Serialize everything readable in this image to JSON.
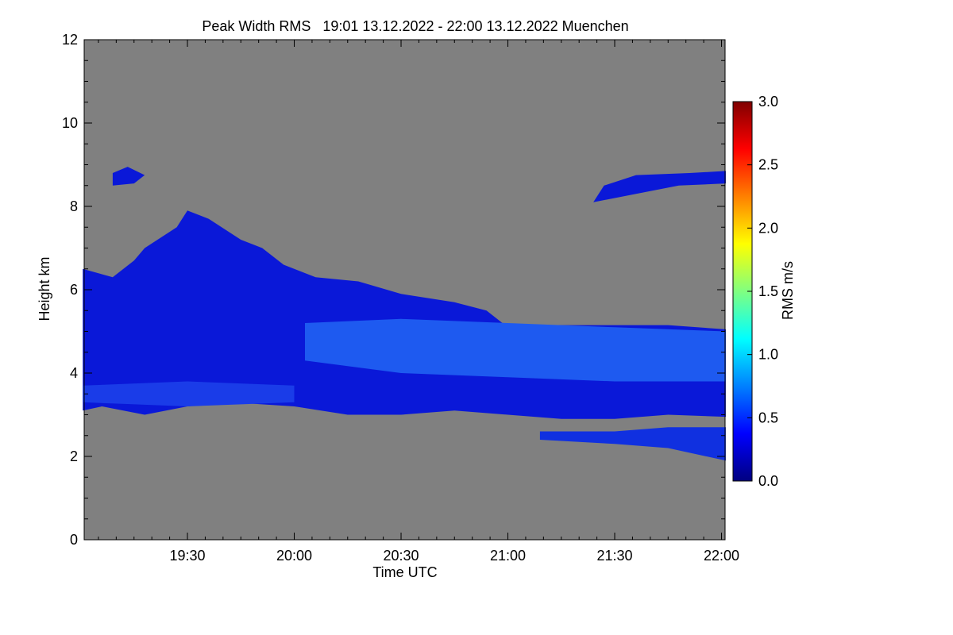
{
  "chart_data": {
    "type": "heatmap",
    "title": "Peak Width RMS   19:01 13.12.2022 - 22:00 13.12.2022 Muenchen",
    "xlabel": "Time UTC",
    "ylabel": "Height km",
    "xlim": [
      "19:01",
      "22:01"
    ],
    "ylim": [
      0,
      12
    ],
    "x_ticks": [
      "19:30",
      "20:00",
      "20:30",
      "21:00",
      "21:30",
      "22:00"
    ],
    "y_ticks": [
      "0",
      "2",
      "4",
      "6",
      "8",
      "10",
      "12"
    ],
    "background_color": "#808080",
    "colorbar": {
      "label": "RMS m/s",
      "range": [
        0.0,
        3.0
      ],
      "ticks": [
        "0.0",
        "0.5",
        "1.0",
        "1.5",
        "2.0",
        "2.5",
        "3.0"
      ],
      "colormap": [
        "#000080",
        "#0000ff",
        "#0080ff",
        "#00ffff",
        "#80ff80",
        "#ffff00",
        "#ff8000",
        "#ff0000",
        "#800000"
      ]
    },
    "regions": [
      {
        "name": "main-cloud-layer",
        "rms": 0.25,
        "color": "#0a18d8",
        "polygon_time_height": [
          [
            19.01,
            3.1
          ],
          [
            19.1,
            3.2
          ],
          [
            19.3,
            3.0
          ],
          [
            19.5,
            3.2
          ],
          [
            19.7,
            3.3
          ],
          [
            20.0,
            3.2
          ],
          [
            20.25,
            3.0
          ],
          [
            20.5,
            3.0
          ],
          [
            20.75,
            3.1
          ],
          [
            21.0,
            3.0
          ],
          [
            21.25,
            2.9
          ],
          [
            21.5,
            2.9
          ],
          [
            21.75,
            3.0
          ],
          [
            22.02,
            2.95
          ],
          [
            22.02,
            5.05
          ],
          [
            21.75,
            5.15
          ],
          [
            21.5,
            5.15
          ],
          [
            21.2,
            5.15
          ],
          [
            21.0,
            5.1
          ],
          [
            20.9,
            5.5
          ],
          [
            20.75,
            5.7
          ],
          [
            20.5,
            5.9
          ],
          [
            20.3,
            6.2
          ],
          [
            20.1,
            6.3
          ],
          [
            19.95,
            6.6
          ],
          [
            19.85,
            7.0
          ],
          [
            19.75,
            7.2
          ],
          [
            19.6,
            7.7
          ],
          [
            19.5,
            7.9
          ],
          [
            19.45,
            7.5
          ],
          [
            19.3,
            7.0
          ],
          [
            19.25,
            6.7
          ],
          [
            19.15,
            6.3
          ],
          [
            19.01,
            6.5
          ]
        ]
      },
      {
        "name": "bright-upper-band",
        "rms": 0.5,
        "color": "#1e5af0",
        "polygon_time_height": [
          [
            20.05,
            4.3
          ],
          [
            20.5,
            4.0
          ],
          [
            21.0,
            3.9
          ],
          [
            21.5,
            3.8
          ],
          [
            22.02,
            3.8
          ],
          [
            22.02,
            5.0
          ],
          [
            21.5,
            5.1
          ],
          [
            21.0,
            5.2
          ],
          [
            20.5,
            5.3
          ],
          [
            20.05,
            5.2
          ]
        ]
      },
      {
        "name": "lower-edge-band",
        "rms": 0.45,
        "color": "#1a3ce8",
        "polygon_time_height": [
          [
            19.01,
            3.3
          ],
          [
            19.5,
            3.2
          ],
          [
            20.0,
            3.3
          ],
          [
            20.0,
            3.7
          ],
          [
            19.5,
            3.8
          ],
          [
            19.01,
            3.7
          ]
        ]
      },
      {
        "name": "upper-cirrus-left",
        "rms": 0.25,
        "color": "#0a18d8",
        "polygon_time_height": [
          [
            19.15,
            8.5
          ],
          [
            19.25,
            8.55
          ],
          [
            19.3,
            8.75
          ],
          [
            19.22,
            8.95
          ],
          [
            19.15,
            8.8
          ]
        ]
      },
      {
        "name": "upper-cirrus-right",
        "rms": 0.25,
        "color": "#0a18d8",
        "polygon_time_height": [
          [
            21.4,
            8.1
          ],
          [
            21.6,
            8.3
          ],
          [
            21.8,
            8.5
          ],
          [
            22.02,
            8.55
          ],
          [
            22.02,
            8.85
          ],
          [
            21.85,
            8.8
          ],
          [
            21.6,
            8.75
          ],
          [
            21.45,
            8.5
          ]
        ]
      },
      {
        "name": "lower-layer-right",
        "rms": 0.3,
        "color": "#1030e0",
        "polygon_time_height": [
          [
            21.15,
            2.4
          ],
          [
            21.5,
            2.3
          ],
          [
            21.75,
            2.2
          ],
          [
            22.02,
            1.9
          ],
          [
            22.02,
            2.7
          ],
          [
            21.75,
            2.7
          ],
          [
            21.5,
            2.6
          ],
          [
            21.15,
            2.6
          ]
        ]
      }
    ]
  }
}
